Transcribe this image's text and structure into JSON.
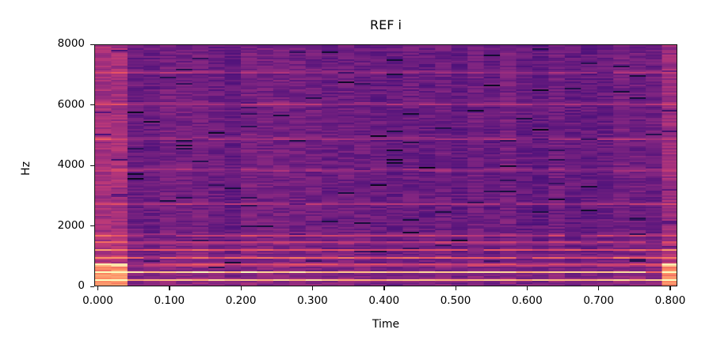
{
  "chart_data": {
    "type": "heatmap",
    "subtype": "spectrogram",
    "title": "REF i",
    "xlabel": "Time",
    "ylabel": "Hz",
    "xlim": [
      -0.005,
      0.81
    ],
    "ylim": [
      0,
      8000
    ],
    "xticks": [
      "0.000",
      "0.100",
      "0.200",
      "0.300",
      "0.400",
      "0.500",
      "0.600",
      "0.700",
      "0.800"
    ],
    "xtick_values": [
      0.0,
      0.1,
      0.2,
      0.3,
      0.4,
      0.5,
      0.6,
      0.7,
      0.8
    ],
    "yticks": [
      "0",
      "2000",
      "4000",
      "6000",
      "8000"
    ],
    "ytick_values": [
      0,
      2000,
      4000,
      6000,
      8000
    ],
    "colormap": "magma",
    "grid": false,
    "legend": null,
    "fundamental_hz": 245,
    "strong_harmonics_hz": [
      245,
      490,
      735,
      980,
      1225,
      1470,
      1715
    ],
    "formant_bands_hz": [
      2750,
      3870,
      4900,
      6050,
      7100
    ],
    "edge_regions": [
      {
        "start": 0.0,
        "end": 0.03,
        "note": "brighter broadband onset"
      },
      {
        "start": 0.78,
        "end": 0.81,
        "note": "brighter broadband offset"
      }
    ]
  },
  "colors": {
    "background_low": "#5b1f80",
    "mid": "#9a2d82",
    "band": "#e0506a",
    "peak": "#fcf3b4"
  }
}
